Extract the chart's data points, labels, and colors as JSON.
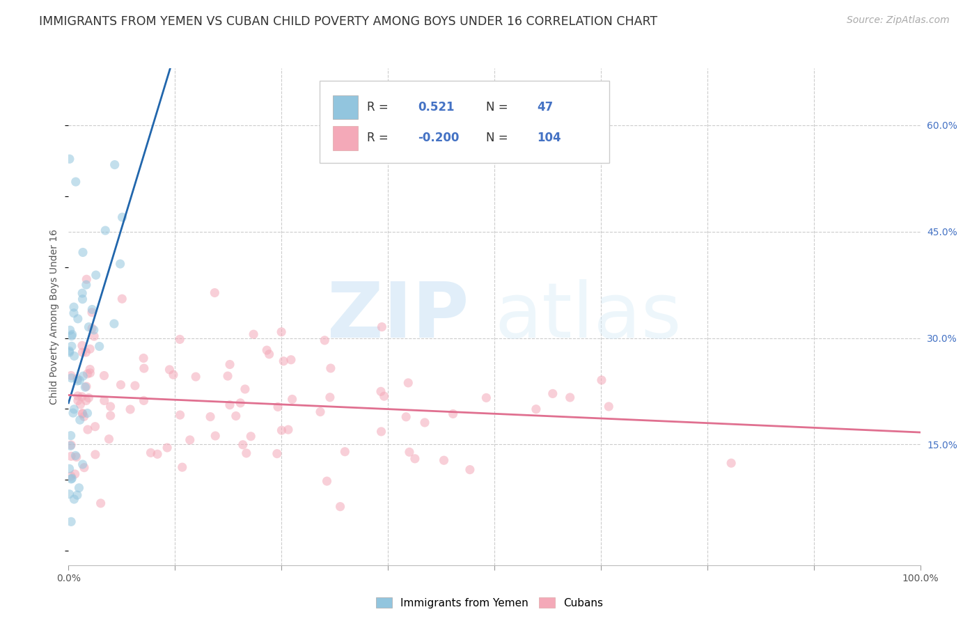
{
  "title": "IMMIGRANTS FROM YEMEN VS CUBAN CHILD POVERTY AMONG BOYS UNDER 16 CORRELATION CHART",
  "source": "Source: ZipAtlas.com",
  "ylabel": "Child Poverty Among Boys Under 16",
  "xlim": [
    0,
    1.0
  ],
  "ylim": [
    -0.02,
    0.68
  ],
  "x_ticks": [
    0.0,
    0.125,
    0.25,
    0.375,
    0.5,
    0.625,
    0.75,
    0.875,
    1.0
  ],
  "x_tick_labels": [
    "0.0%",
    "",
    "",
    "",
    "",
    "",
    "",
    "",
    "100.0%"
  ],
  "y_ticks": [
    0.15,
    0.3,
    0.45,
    0.6
  ],
  "y_tick_labels": [
    "15.0%",
    "30.0%",
    "45.0%",
    "60.0%"
  ],
  "yemen_color": "#92c5de",
  "cuban_color": "#f4a9b8",
  "yemen_line_color": "#2166ac",
  "cuban_line_color": "#e07090",
  "yemen_R": 0.521,
  "yemen_N": 47,
  "cuban_R": -0.2,
  "cuban_N": 104,
  "background_color": "#ffffff",
  "grid_color": "#cccccc",
  "title_fontsize": 12.5,
  "source_fontsize": 10,
  "axis_label_fontsize": 10,
  "tick_fontsize": 10,
  "legend_fontsize": 12,
  "scatter_size": 90,
  "scatter_alpha": 0.55,
  "yemen_seed": 42,
  "cuban_seed": 77
}
